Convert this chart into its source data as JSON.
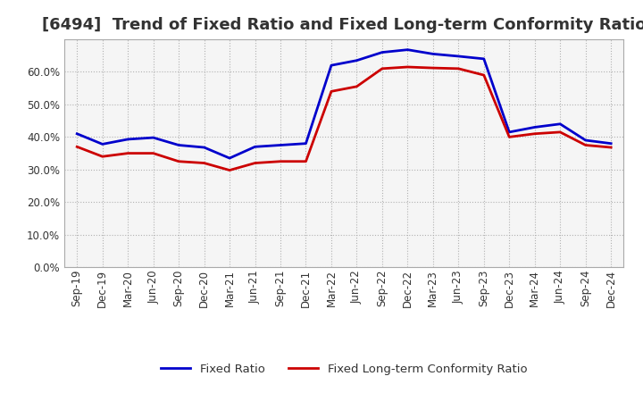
{
  "title": "[6494]  Trend of Fixed Ratio and Fixed Long-term Conformity Ratio",
  "title_fontsize": 13,
  "ylim": [
    0.0,
    0.7
  ],
  "yticks": [
    0.0,
    0.1,
    0.2,
    0.3,
    0.4,
    0.5,
    0.6
  ],
  "x_labels": [
    "Sep-19",
    "Dec-19",
    "Mar-20",
    "Jun-20",
    "Sep-20",
    "Dec-20",
    "Mar-21",
    "Jun-21",
    "Sep-21",
    "Dec-21",
    "Mar-22",
    "Jun-22",
    "Sep-22",
    "Dec-22",
    "Mar-23",
    "Jun-23",
    "Sep-23",
    "Dec-23",
    "Mar-24",
    "Jun-24",
    "Sep-24",
    "Dec-24"
  ],
  "fixed_ratio": [
    0.41,
    0.378,
    0.393,
    0.398,
    0.375,
    0.368,
    0.335,
    0.37,
    0.375,
    0.38,
    0.62,
    0.635,
    0.66,
    0.668,
    0.655,
    0.648,
    0.64,
    0.415,
    0.43,
    0.44,
    0.39,
    0.38
  ],
  "fixed_lt_ratio": [
    0.37,
    0.34,
    0.35,
    0.35,
    0.325,
    0.32,
    0.298,
    0.32,
    0.325,
    0.325,
    0.54,
    0.555,
    0.61,
    0.615,
    0.612,
    0.61,
    0.59,
    0.4,
    0.41,
    0.415,
    0.375,
    0.368
  ],
  "fixed_ratio_color": "#0000cc",
  "fixed_lt_ratio_color": "#cc0000",
  "background_color": "#ffffff",
  "plot_bg_color": "#f5f5f5",
  "grid_color": "#aaaaaa",
  "legend_labels": [
    "Fixed Ratio",
    "Fixed Long-term Conformity Ratio"
  ]
}
